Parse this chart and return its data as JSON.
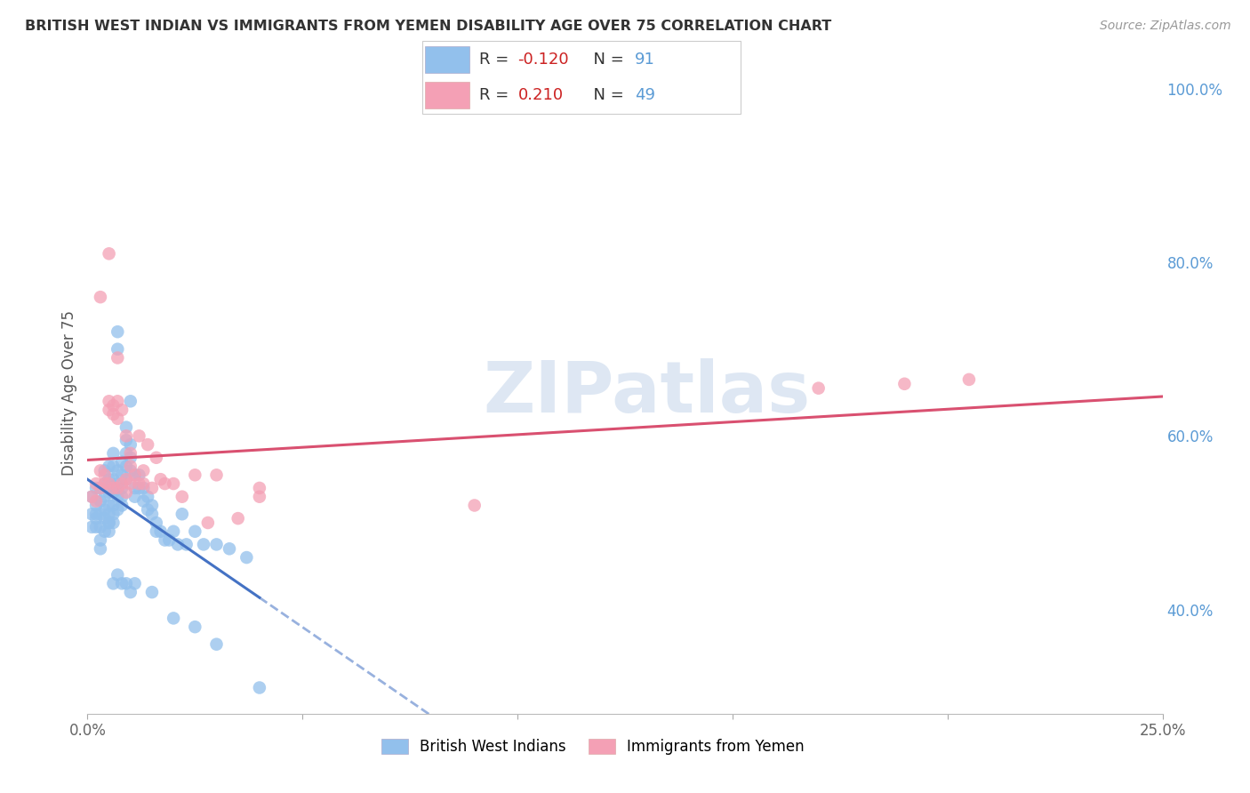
{
  "title": "BRITISH WEST INDIAN VS IMMIGRANTS FROM YEMEN DISABILITY AGE OVER 75 CORRELATION CHART",
  "source": "Source: ZipAtlas.com",
  "ylabel": "Disability Age Over 75",
  "legend_label1": "British West Indians",
  "legend_label2": "Immigrants from Yemen",
  "R1": -0.12,
  "N1": 91,
  "R2": 0.21,
  "N2": 49,
  "color1": "#92C0EC",
  "color2": "#F4A0B5",
  "line_color1": "#4472C4",
  "line_color2": "#D95070",
  "watermark": "ZIPatlas",
  "xlim": [
    0.0,
    0.25
  ],
  "ylim": [
    0.28,
    1.02
  ],
  "xtick_positions": [
    0.0,
    0.05,
    0.1,
    0.15,
    0.2,
    0.25
  ],
  "xticklabels": [
    "0.0%",
    "",
    "",
    "",
    "",
    "25.0%"
  ],
  "ytick_right_positions": [
    0.4,
    0.6,
    0.8,
    1.0
  ],
  "ytick_right_labels": [
    "40.0%",
    "60.0%",
    "80.0%",
    "100.0%"
  ],
  "blue_scatter_x": [
    0.001,
    0.001,
    0.001,
    0.002,
    0.002,
    0.002,
    0.002,
    0.002,
    0.003,
    0.003,
    0.003,
    0.003,
    0.003,
    0.003,
    0.004,
    0.004,
    0.004,
    0.004,
    0.004,
    0.004,
    0.005,
    0.005,
    0.005,
    0.005,
    0.005,
    0.005,
    0.005,
    0.006,
    0.006,
    0.006,
    0.006,
    0.006,
    0.006,
    0.006,
    0.007,
    0.007,
    0.007,
    0.007,
    0.007,
    0.007,
    0.008,
    0.008,
    0.008,
    0.008,
    0.008,
    0.009,
    0.009,
    0.009,
    0.009,
    0.009,
    0.01,
    0.01,
    0.01,
    0.01,
    0.011,
    0.011,
    0.011,
    0.012,
    0.012,
    0.013,
    0.013,
    0.014,
    0.014,
    0.015,
    0.015,
    0.016,
    0.016,
    0.017,
    0.018,
    0.019,
    0.02,
    0.021,
    0.022,
    0.023,
    0.025,
    0.027,
    0.03,
    0.033,
    0.037,
    0.005,
    0.006,
    0.007,
    0.008,
    0.009,
    0.01,
    0.011,
    0.015,
    0.02,
    0.025,
    0.03,
    0.04
  ],
  "blue_scatter_y": [
    0.53,
    0.51,
    0.495,
    0.54,
    0.52,
    0.51,
    0.505,
    0.495,
    0.54,
    0.525,
    0.51,
    0.495,
    0.48,
    0.47,
    0.56,
    0.545,
    0.53,
    0.515,
    0.505,
    0.49,
    0.565,
    0.55,
    0.535,
    0.52,
    0.51,
    0.5,
    0.49,
    0.58,
    0.565,
    0.55,
    0.535,
    0.52,
    0.51,
    0.5,
    0.72,
    0.7,
    0.56,
    0.545,
    0.53,
    0.515,
    0.57,
    0.555,
    0.54,
    0.53,
    0.52,
    0.61,
    0.595,
    0.58,
    0.565,
    0.55,
    0.64,
    0.59,
    0.575,
    0.56,
    0.555,
    0.54,
    0.53,
    0.555,
    0.54,
    0.54,
    0.525,
    0.53,
    0.515,
    0.52,
    0.51,
    0.5,
    0.49,
    0.49,
    0.48,
    0.48,
    0.49,
    0.475,
    0.51,
    0.475,
    0.49,
    0.475,
    0.475,
    0.47,
    0.46,
    0.5,
    0.43,
    0.44,
    0.43,
    0.43,
    0.42,
    0.43,
    0.42,
    0.39,
    0.38,
    0.36,
    0.31
  ],
  "pink_scatter_x": [
    0.001,
    0.002,
    0.002,
    0.003,
    0.003,
    0.004,
    0.004,
    0.005,
    0.005,
    0.005,
    0.006,
    0.006,
    0.006,
    0.007,
    0.007,
    0.007,
    0.008,
    0.008,
    0.009,
    0.009,
    0.01,
    0.01,
    0.01,
    0.011,
    0.012,
    0.012,
    0.013,
    0.013,
    0.014,
    0.015,
    0.016,
    0.017,
    0.018,
    0.02,
    0.022,
    0.025,
    0.028,
    0.03,
    0.035,
    0.04,
    0.003,
    0.005,
    0.007,
    0.009,
    0.04,
    0.17,
    0.19,
    0.205,
    0.09
  ],
  "pink_scatter_y": [
    0.53,
    0.545,
    0.525,
    0.56,
    0.54,
    0.555,
    0.545,
    0.545,
    0.64,
    0.63,
    0.635,
    0.625,
    0.54,
    0.64,
    0.62,
    0.54,
    0.63,
    0.545,
    0.55,
    0.535,
    0.58,
    0.565,
    0.545,
    0.555,
    0.6,
    0.545,
    0.56,
    0.545,
    0.59,
    0.54,
    0.575,
    0.55,
    0.545,
    0.545,
    0.53,
    0.555,
    0.5,
    0.555,
    0.505,
    0.54,
    0.76,
    0.81,
    0.69,
    0.6,
    0.53,
    0.655,
    0.66,
    0.665,
    0.52
  ],
  "grid_color": "#cccccc",
  "title_color": "#333333",
  "source_color": "#999999",
  "ylabel_color": "#555555",
  "xtick_color": "#666666",
  "ytick_right_color": "#5B9BD5",
  "legend_box_color": "#dddddd",
  "R_value_color": "#cc2222",
  "N_value_color": "#5B9BD5"
}
